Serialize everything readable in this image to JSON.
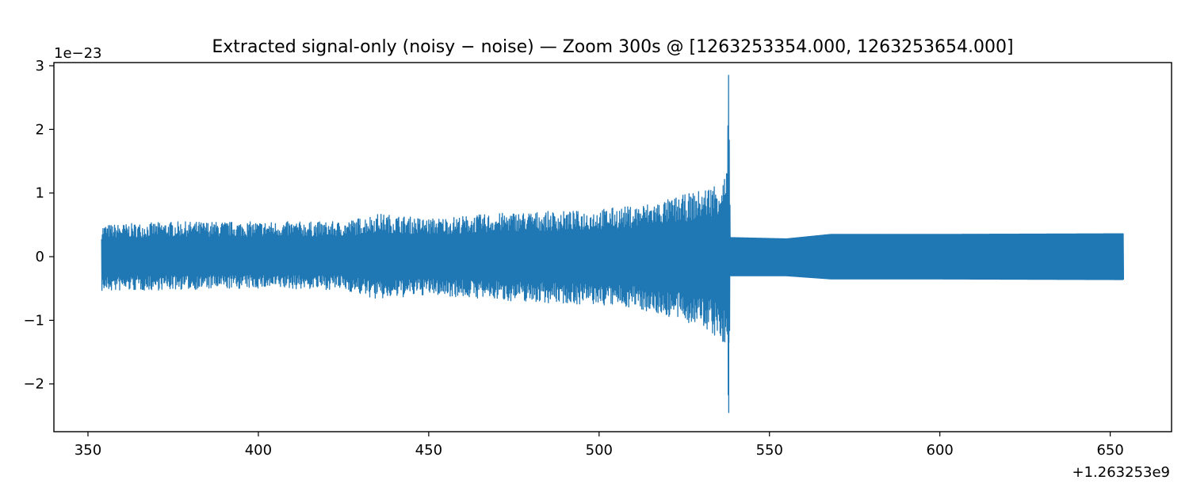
{
  "chart_data": {
    "type": "line",
    "title": "Extracted signal-only (noisy − noise) — Zoom 300s @ [1263253354.000, 1263253654.000]",
    "xlabel": "",
    "ylabel": "",
    "x_offset_label": "+1.263253e9",
    "y_scale_label": "1e−23",
    "xlim": [
      340,
      668
    ],
    "ylim": [
      -2.75,
      3.05
    ],
    "x_ticks": [
      350,
      400,
      450,
      500,
      550,
      600,
      650
    ],
    "x_tick_labels": [
      "350",
      "400",
      "450",
      "500",
      "550",
      "600",
      "650"
    ],
    "y_ticks": [
      -2,
      -1,
      0,
      1,
      2,
      3
    ],
    "y_tick_labels": [
      "−2",
      "−1",
      "0",
      "1",
      "2",
      "3"
    ],
    "grid": false,
    "legend": "none",
    "series": [
      {
        "color": "#1f77b4",
        "x_range": [
          354,
          654
        ],
        "envelope_points": [
          {
            "x": 354,
            "max": 0.5,
            "min": -0.55
          },
          {
            "x": 375,
            "max": 0.55,
            "min": -0.52
          },
          {
            "x": 400,
            "max": 0.55,
            "min": -0.5
          },
          {
            "x": 425,
            "max": 0.55,
            "min": -0.52
          },
          {
            "x": 435,
            "max": 0.68,
            "min": -0.68
          },
          {
            "x": 450,
            "max": 0.6,
            "min": -0.6
          },
          {
            "x": 475,
            "max": 0.7,
            "min": -0.7
          },
          {
            "x": 494,
            "max": 0.72,
            "min": -0.75
          },
          {
            "x": 510,
            "max": 0.8,
            "min": -0.8
          },
          {
            "x": 520,
            "max": 0.9,
            "min": -0.95
          },
          {
            "x": 530,
            "max": 1.05,
            "min": -1.1
          },
          {
            "x": 535,
            "max": 1.2,
            "min": -1.3
          },
          {
            "x": 537.5,
            "max": 1.35,
            "min": -1.55
          },
          {
            "x": 538,
            "max": 2.85,
            "min": -2.45
          },
          {
            "x": 538.5,
            "max": 0.3,
            "min": -0.3
          },
          {
            "x": 555,
            "max": 0.28,
            "min": -0.3
          },
          {
            "x": 568,
            "max": 0.35,
            "min": -0.35
          },
          {
            "x": 600,
            "max": 0.35,
            "min": -0.35
          },
          {
            "x": 654,
            "max": 0.36,
            "min": -0.36
          }
        ]
      }
    ]
  }
}
